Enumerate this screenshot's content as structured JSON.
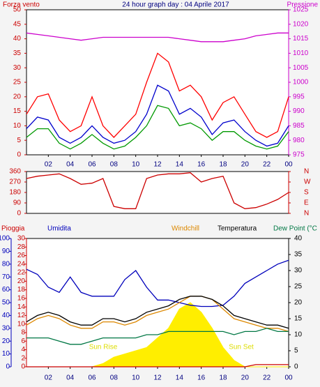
{
  "chart_data": [
    {
      "type": "line",
      "title": "24 hour graph day : 04 Aprile 2017",
      "ylabel": "Forza vento",
      "y2label": "Pressione",
      "categories": [
        null,
        null,
        "02",
        null,
        "04",
        null,
        "06",
        null,
        "08",
        null,
        "10",
        null,
        "12",
        null,
        "14",
        null,
        "16",
        null,
        "18",
        null,
        "20",
        null,
        "22",
        null,
        "00"
      ],
      "ylim": [
        0,
        50
      ],
      "yticks": [
        0,
        5,
        10,
        15,
        20,
        25,
        30,
        35,
        40,
        45,
        50
      ],
      "y2lim": [
        975,
        1025
      ],
      "y2ticks": [
        975,
        980,
        985,
        990,
        995,
        1000,
        1005,
        1010,
        1015,
        1020,
        1025
      ],
      "series": [
        {
          "color": "#ff0000",
          "values": [
            14,
            20,
            21,
            12,
            8,
            10,
            20,
            10,
            6,
            10,
            14,
            25,
            35,
            32,
            22,
            24,
            20,
            12,
            18,
            20,
            14,
            8,
            6,
            8,
            20
          ]
        },
        {
          "color": "#009900",
          "values": [
            6,
            9,
            9,
            4,
            2,
            4,
            7,
            4,
            2,
            3,
            6,
            10,
            17,
            16,
            10,
            11,
            9,
            5,
            8,
            8,
            5,
            3,
            2,
            3,
            8
          ]
        },
        {
          "color": "#0000cc",
          "values": [
            9,
            13,
            12,
            6,
            4,
            6,
            10,
            6,
            4,
            5,
            8,
            14,
            24,
            22,
            14,
            16,
            13,
            7,
            11,
            12,
            8,
            5,
            3,
            4,
            10
          ]
        },
        {
          "color": "#cc00cc",
          "axis": "y2",
          "values": [
            1017,
            1016.5,
            1016,
            1015.5,
            1015,
            1014.5,
            1015,
            1015.5,
            1015.5,
            1015.5,
            1015.5,
            1015.5,
            1015.5,
            1015.5,
            1015,
            1014.5,
            1014,
            1014,
            1014,
            1014.5,
            1015,
            1016,
            1016.5,
            1017,
            1017
          ]
        }
      ]
    },
    {
      "type": "line",
      "ylim": [
        0,
        360
      ],
      "yticks": [
        0,
        90,
        180,
        270,
        360
      ],
      "y2lim": [
        0,
        360
      ],
      "y2ticks": [
        {
          "value": 360,
          "label": "N"
        },
        {
          "value": 270,
          "label": "W"
        },
        {
          "value": 180,
          "label": "S"
        },
        {
          "value": 90,
          "label": "E"
        },
        {
          "value": 0,
          "label": "N"
        }
      ],
      "series": [
        {
          "color": "#cc0000",
          "values": [
            300,
            320,
            330,
            340,
            300,
            250,
            260,
            300,
            60,
            40,
            40,
            300,
            330,
            340,
            340,
            350,
            270,
            300,
            320,
            90,
            40,
            50,
            80,
            120,
            180
          ]
        }
      ]
    },
    {
      "type": "line",
      "categories": [
        null,
        null,
        "02",
        null,
        "04",
        null,
        "06",
        null,
        "08",
        null,
        "10",
        null,
        "12",
        null,
        "14",
        null,
        "16",
        null,
        "18",
        null,
        "20",
        null,
        "22",
        null,
        "00"
      ],
      "ylim": [
        0,
        40
      ],
      "yticks": [
        0,
        5,
        10,
        15,
        20,
        25,
        30,
        35,
        40
      ],
      "y2lim": [
        0,
        100
      ],
      "y2ticks": [
        0,
        10,
        20,
        30,
        40,
        50,
        60,
        70,
        80,
        90,
        100
      ],
      "y3lim": [
        0,
        30
      ],
      "y3ticks": [
        0,
        2,
        4,
        6,
        8,
        10,
        12,
        14,
        16,
        18,
        20,
        22,
        24,
        26,
        28,
        30
      ],
      "annotations": [
        "Sun Rise",
        "Sun Set"
      ],
      "series": [
        {
          "color": "#ffee00",
          "area": true,
          "values": [
            0,
            0,
            0,
            0,
            0,
            0,
            0,
            1,
            3,
            4,
            5,
            6,
            9,
            12,
            18,
            20,
            17,
            12,
            6,
            2,
            0,
            0,
            0,
            0,
            0
          ]
        },
        {
          "name": "Pioggia",
          "color": "#cc0000",
          "axis": "y3",
          "values": [
            0,
            0,
            0,
            0,
            0,
            0,
            0,
            0,
            0,
            0,
            0,
            0,
            0,
            0,
            0,
            0,
            0,
            0,
            0,
            0,
            0,
            0.5,
            0.5,
            0.5,
            0.5
          ]
        },
        {
          "name": "Umidita",
          "color": "#0000bb",
          "axis": "y2",
          "values": [
            76,
            72,
            62,
            58,
            70,
            58,
            55,
            55,
            55,
            68,
            75,
            62,
            52,
            52,
            50,
            48,
            47,
            47,
            48,
            55,
            65,
            70,
            75,
            80,
            83
          ]
        },
        {
          "name": "Windchill",
          "color": "#dd8800",
          "values": [
            13,
            15,
            16,
            15,
            13,
            12,
            12,
            14,
            14,
            13,
            14,
            16,
            17,
            18,
            20,
            22,
            22,
            21,
            18,
            15,
            14,
            13,
            12,
            12,
            11
          ]
        },
        {
          "name": "Temperatura",
          "color": "#000000",
          "values": [
            14,
            16,
            17,
            16,
            14,
            13,
            13,
            15,
            15,
            14,
            15,
            17,
            18,
            19,
            21,
            22,
            22,
            21,
            19,
            16,
            15,
            14,
            13,
            13,
            12
          ]
        },
        {
          "name": "Dew Point (°C",
          "color": "#007744",
          "values": [
            9,
            9,
            9,
            8,
            7,
            7,
            8,
            9,
            9,
            9,
            9,
            10,
            10,
            11,
            11,
            11,
            11,
            11,
            11,
            10,
            11,
            11,
            12,
            11,
            11
          ]
        }
      ]
    }
  ]
}
